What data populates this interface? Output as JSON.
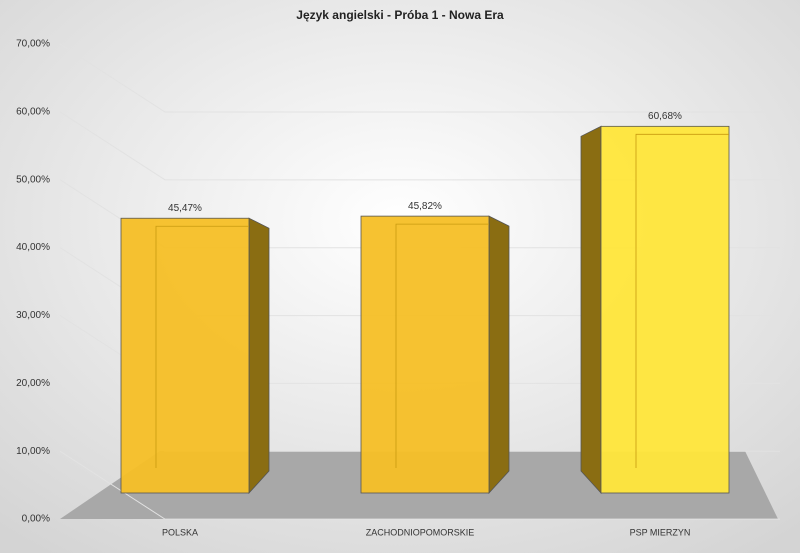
{
  "chart_data": {
    "type": "bar3d",
    "title": "Język angielski - Próba 1 - Nowa Era",
    "categories": [
      "POLSKA",
      "ZACHODNIOPOMORSKIE",
      "PSP MIERZYN"
    ],
    "values": [
      45.47,
      45.82,
      60.68
    ],
    "value_labels": [
      "45,47%",
      "45,82%",
      "60,68%"
    ],
    "colors": [
      "#f6bf26",
      "#f6bf26",
      "#ffe63a"
    ],
    "ylim": [
      0,
      70
    ],
    "yticks": [
      {
        "value": 0,
        "label": "0,00%"
      },
      {
        "value": 10,
        "label": "10,00%"
      },
      {
        "value": 20,
        "label": "20,00%"
      },
      {
        "value": 30,
        "label": "30,00%"
      },
      {
        "value": 40,
        "label": "40,00%"
      },
      {
        "value": 50,
        "label": "50,00%"
      },
      {
        "value": 60,
        "label": "60,00%"
      },
      {
        "value": 70,
        "label": "70,00%"
      }
    ],
    "grid": true
  }
}
